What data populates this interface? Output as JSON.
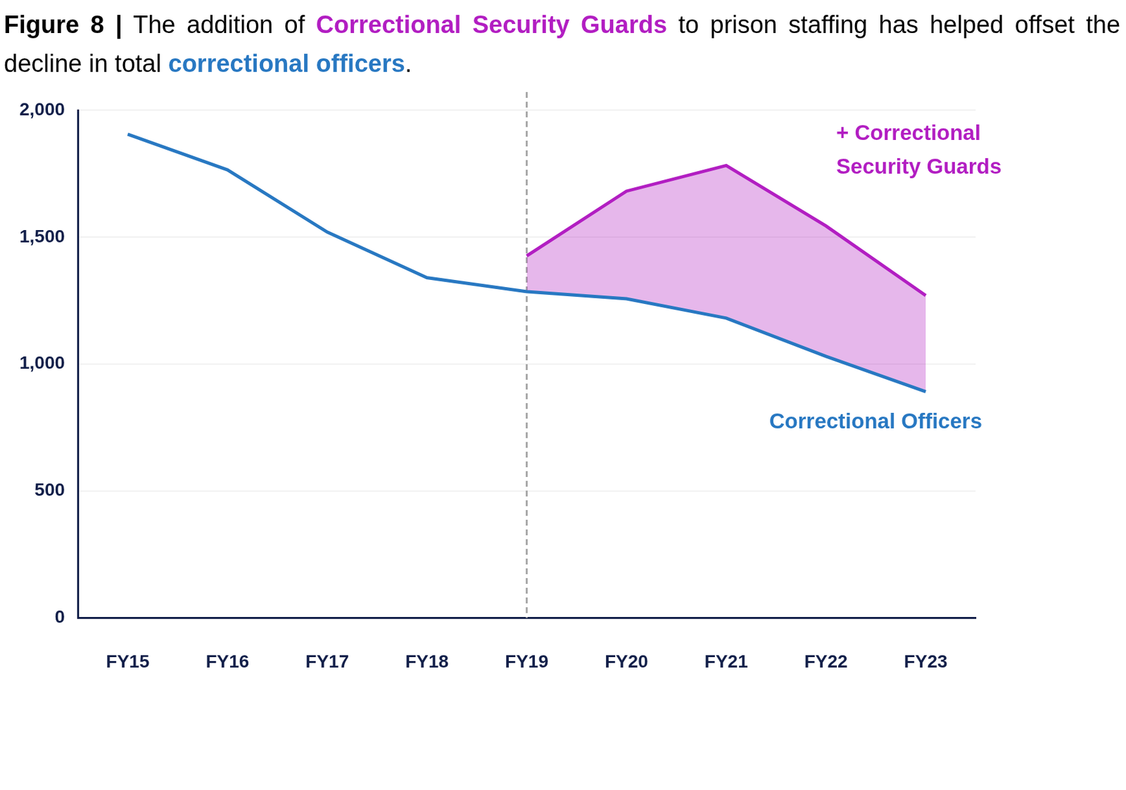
{
  "chart_data": {
    "type": "line",
    "title": "Figure 8 | The addition of Correctional Security Guards to prison staffing has helped offset the decline in total correctional officers.",
    "categories": [
      "FY15",
      "FY16",
      "FY17",
      "FY18",
      "FY19",
      "FY20",
      "FY21",
      "FY22",
      "FY23"
    ],
    "series": [
      {
        "name": "Correctional Officers",
        "color": "#2878c2",
        "values": [
          1905,
          1765,
          1520,
          1340,
          1285,
          1257,
          1181,
          1030,
          891
        ]
      },
      {
        "name": "+ Correctional Security Guards",
        "color": "#b21ec2",
        "values": [
          null,
          null,
          null,
          null,
          141,
          424,
          601,
          514,
          379
        ]
      }
    ],
    "stacked": true,
    "ylim": [
      0,
      2000
    ],
    "yticks": [
      0,
      500,
      {
        "value": 1000,
        "label": "1,000"
      },
      {
        "value": 1500,
        "label": "1,500"
      },
      {
        "value": 2000,
        "label": "2,000"
      }
    ],
    "grid": true
  }
}
